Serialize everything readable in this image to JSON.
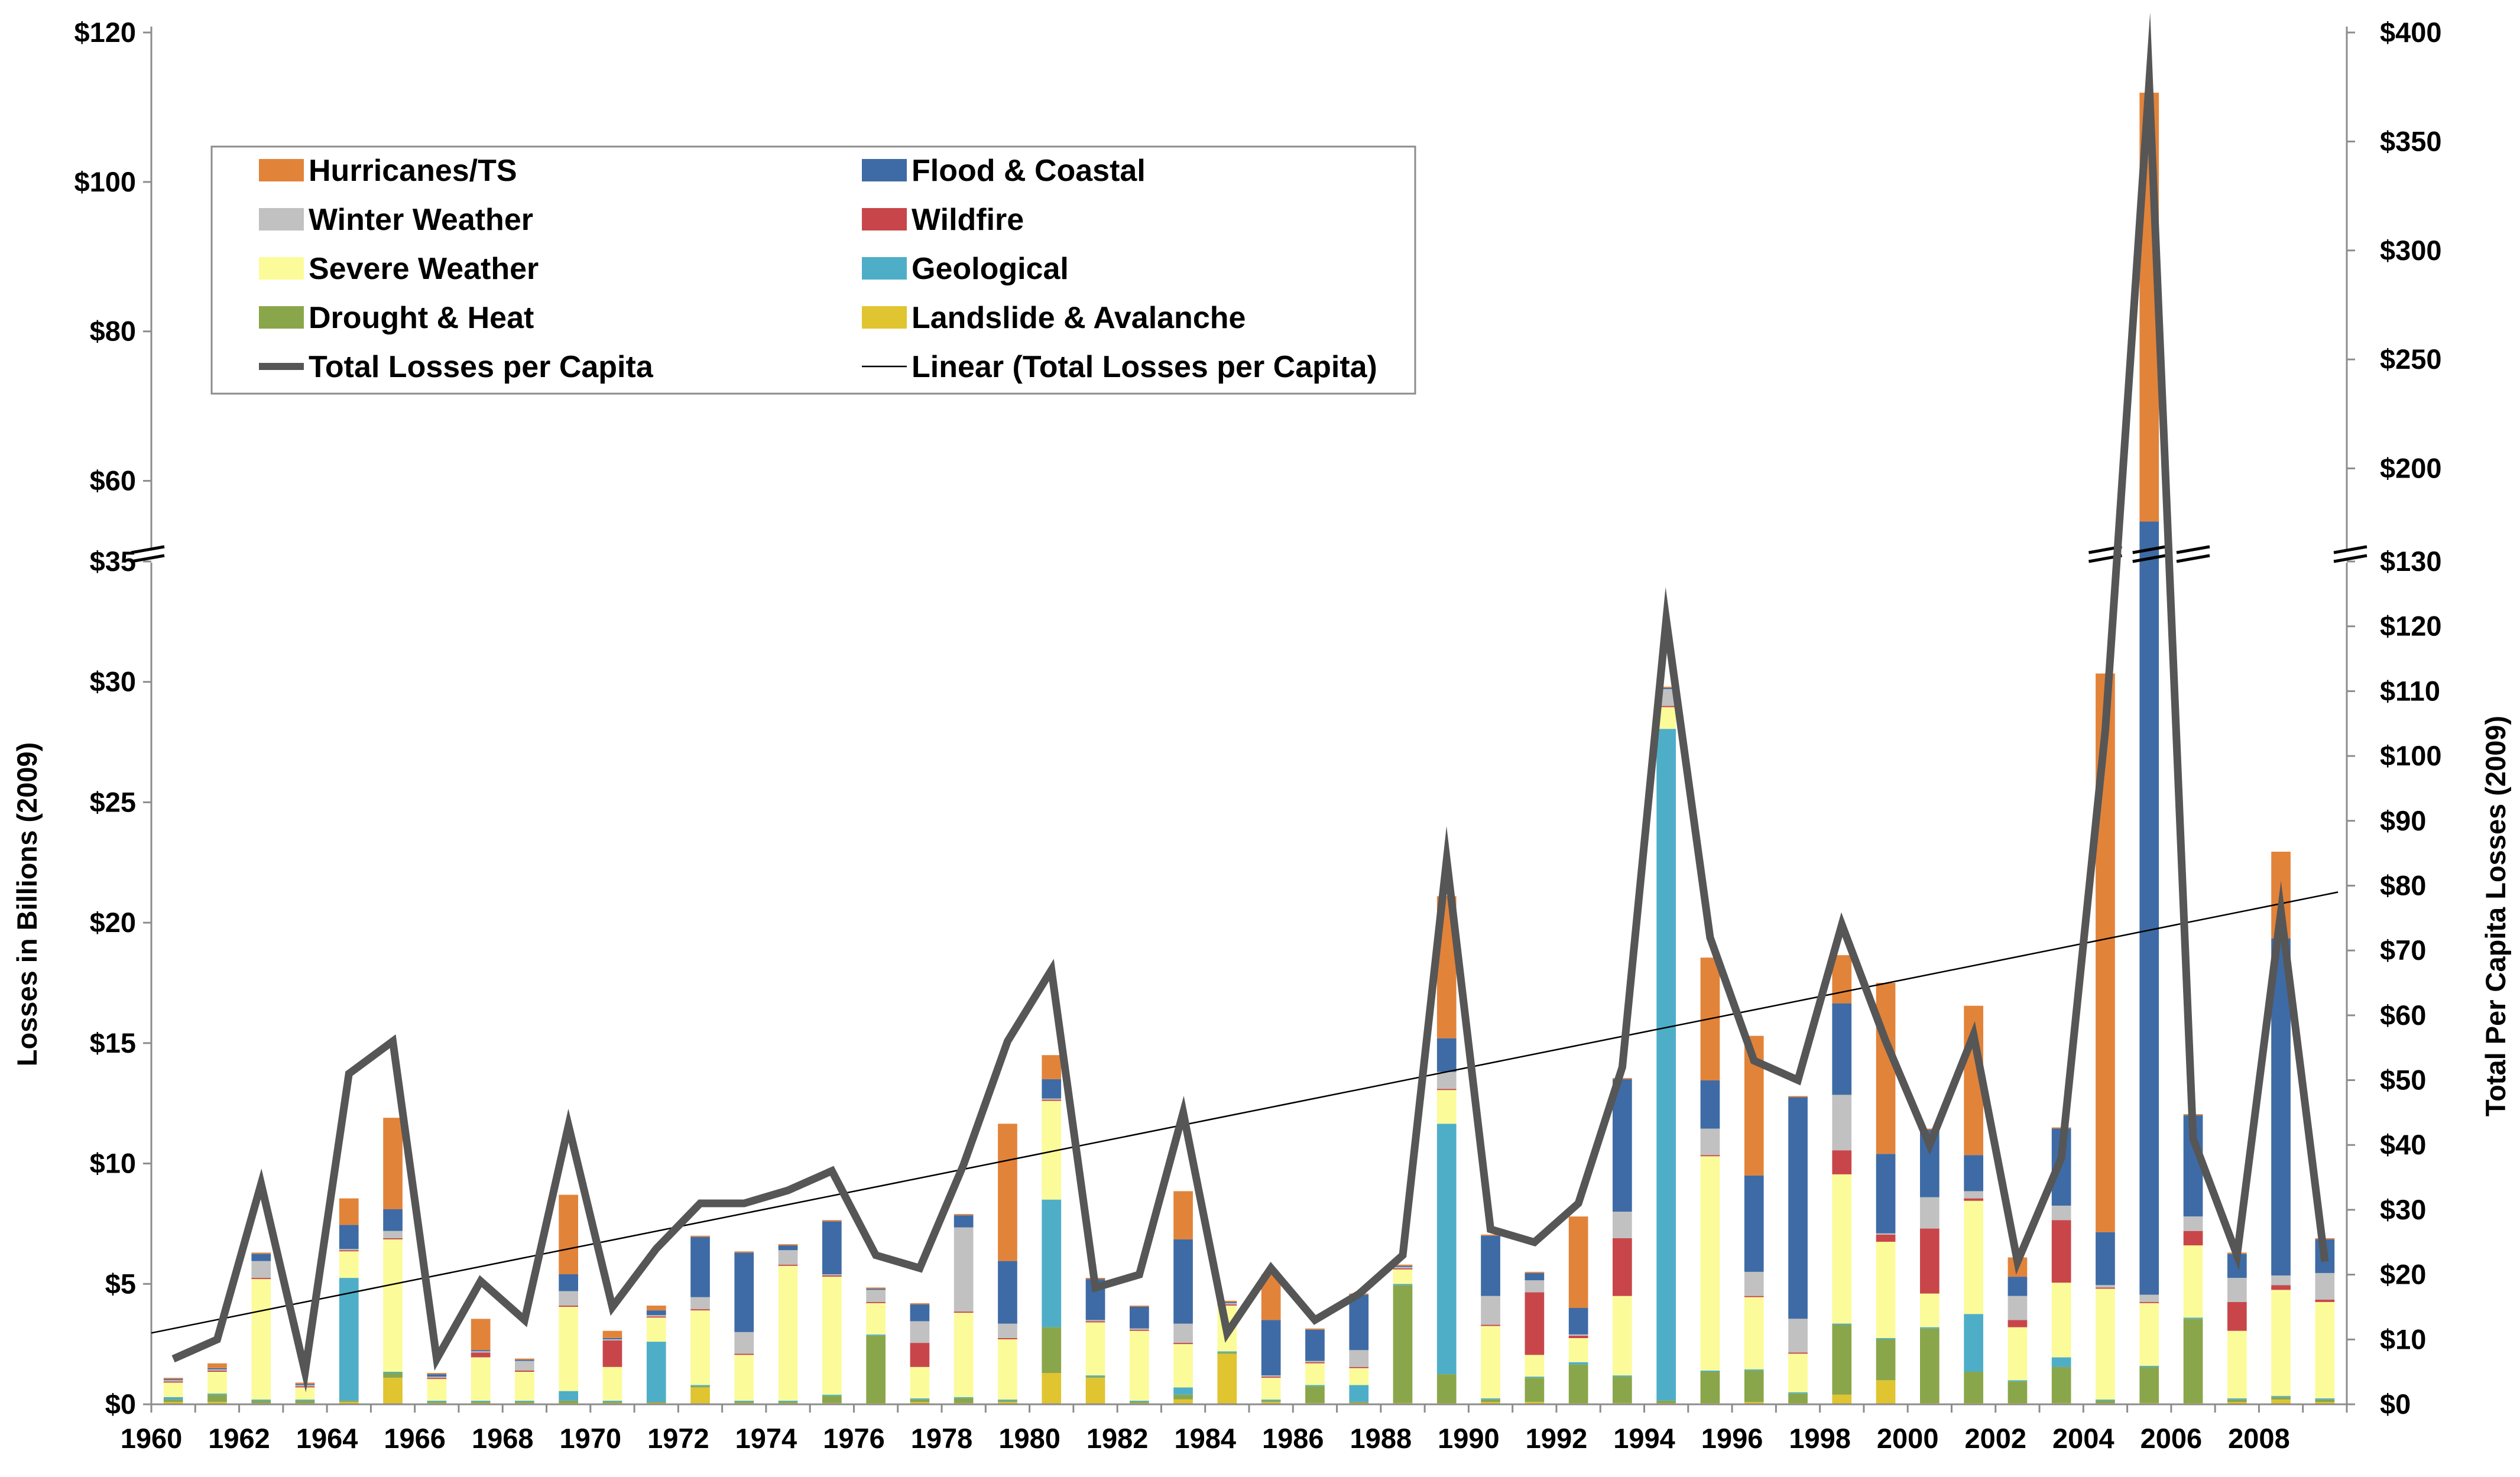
{
  "chart_data": {
    "type": "bar",
    "stacked": true,
    "title": "",
    "xlabel": "",
    "ylabel": "Losses in Billions (2009)",
    "y2label": "Total Per Capita Losses (2009)",
    "axis_break": {
      "left": [
        35,
        50
      ],
      "right": [
        130,
        160
      ]
    },
    "left_ticks_lower": [
      "$0",
      "$5",
      "$10",
      "$15",
      "$20",
      "$25",
      "$30",
      "$35"
    ],
    "left_ticks_upper": [
      "$60",
      "$80",
      "$100",
      "$120"
    ],
    "right_ticks_lower": [
      "$0",
      "$10",
      "$20",
      "$30",
      "$40",
      "$50",
      "$60",
      "$70",
      "$80",
      "$90",
      "$100",
      "$110",
      "$120",
      "$130"
    ],
    "right_ticks_upper": [
      "$200",
      "$250",
      "$300",
      "$350",
      "$400"
    ],
    "x_tick_labels": [
      "1960",
      "1962",
      "1964",
      "1966",
      "1968",
      "1970",
      "1972",
      "1974",
      "1976",
      "1978",
      "1980",
      "1982",
      "1984",
      "1986",
      "1988",
      "1990",
      "1992",
      "1994",
      "1996",
      "1998",
      "2000",
      "2002",
      "2004",
      "2006",
      "2008"
    ],
    "categories": [
      1960,
      1961,
      1962,
      1963,
      1964,
      1965,
      1966,
      1967,
      1968,
      1969,
      1970,
      1971,
      1972,
      1973,
      1974,
      1975,
      1976,
      1977,
      1978,
      1979,
      1980,
      1981,
      1982,
      1983,
      1984,
      1985,
      1986,
      1987,
      1988,
      1989,
      1990,
      1991,
      1992,
      1993,
      1994,
      1995,
      1996,
      1997,
      1998,
      1999,
      2000,
      2001,
      2002,
      2003,
      2004,
      2005,
      2006,
      2007,
      2008,
      2009
    ],
    "series": [
      {
        "name": "Landslide & Avalanche",
        "color": "#e0c430",
        "values": [
          0.1,
          0.1,
          0.05,
          0.05,
          0.1,
          1.1,
          0.05,
          0.05,
          0.05,
          0.05,
          0.05,
          0.05,
          0.7,
          0.05,
          0.05,
          0.05,
          0.05,
          0.1,
          0.05,
          0.1,
          1.3,
          1.1,
          0.05,
          0.2,
          2.1,
          0.1,
          0.05,
          0.05,
          0.05,
          0.05,
          0.1,
          0.1,
          0.05,
          0.05,
          0.05,
          0.05,
          0.1,
          0.05,
          0.4,
          1.0,
          0.05,
          0.05,
          0.05,
          0.05,
          0.05,
          0.05,
          0.05,
          0.1,
          0.2,
          0.1
        ]
      },
      {
        "name": "Drought & Heat",
        "color": "#8aa64a",
        "values": [
          0.1,
          0.3,
          0.1,
          0.1,
          0.05,
          0.2,
          0.05,
          0.05,
          0.05,
          0.1,
          0.05,
          0.05,
          0.05,
          0.05,
          0.05,
          0.3,
          2.8,
          0.1,
          0.2,
          0.05,
          1.9,
          0.05,
          0.05,
          0.2,
          0.05,
          0.05,
          0.7,
          0.05,
          4.9,
          1.2,
          0.1,
          1.0,
          1.6,
          1.1,
          0.1,
          1.3,
          1.3,
          0.4,
          2.9,
          1.7,
          3.1,
          1.3,
          0.9,
          1.5,
          0.1,
          1.5,
          3.5,
          0.1,
          0.1,
          0.1
        ]
      },
      {
        "name": "Geological",
        "color": "#4eaec8",
        "values": [
          0.1,
          0.05,
          0.05,
          0.05,
          5.1,
          0.05,
          0.05,
          0.05,
          0.05,
          0.4,
          0.05,
          2.5,
          0.05,
          0.05,
          0.05,
          0.05,
          0.05,
          0.05,
          0.05,
          0.05,
          5.3,
          0.05,
          0.05,
          0.3,
          0.05,
          0.05,
          0.05,
          0.7,
          0.05,
          10.4,
          0.05,
          0.05,
          0.1,
          0.05,
          27.9,
          0.05,
          0.05,
          0.05,
          0.05,
          0.05,
          0.05,
          2.4,
          0.05,
          0.4,
          0.05,
          0.05,
          0.05,
          0.05,
          0.05,
          0.05
        ]
      },
      {
        "name": "Severe Weather",
        "color": "#fbfb9a",
        "values": [
          0.6,
          0.9,
          5.0,
          0.5,
          1.1,
          5.5,
          0.9,
          1.8,
          1.2,
          3.5,
          1.4,
          1.0,
          3.1,
          1.9,
          5.6,
          4.9,
          1.3,
          1.3,
          3.5,
          2.5,
          4.1,
          2.2,
          2.9,
          1.8,
          1.9,
          0.9,
          0.9,
          0.7,
          0.6,
          1.4,
          3.0,
          0.9,
          1.0,
          3.3,
          0.9,
          8.9,
          3.0,
          1.6,
          6.2,
          4.0,
          1.4,
          4.7,
          2.2,
          3.1,
          4.6,
          2.6,
          3.0,
          2.8,
          4.4,
          4.0
        ]
      },
      {
        "name": "Wildfire",
        "color": "#c8464a",
        "values": [
          0.05,
          0.05,
          0.05,
          0.05,
          0.05,
          0.05,
          0.05,
          0.2,
          0.05,
          0.05,
          1.1,
          0.05,
          0.05,
          0.05,
          0.05,
          0.05,
          0.05,
          1.0,
          0.05,
          0.05,
          0.05,
          0.05,
          0.05,
          0.05,
          0.05,
          0.05,
          0.05,
          0.05,
          0.05,
          0.05,
          0.05,
          2.6,
          0.1,
          2.4,
          0.05,
          0.05,
          0.05,
          0.05,
          1.0,
          0.3,
          2.7,
          0.1,
          0.3,
          2.6,
          0.05,
          0.05,
          0.6,
          1.2,
          0.2,
          0.1
        ]
      },
      {
        "name": "Winter Weather",
        "color": "#c1c1c1",
        "values": [
          0.05,
          0.05,
          0.7,
          0.05,
          0.05,
          0.3,
          0.05,
          0.05,
          0.4,
          0.6,
          0.05,
          0.05,
          0.5,
          0.9,
          0.6,
          0.05,
          0.5,
          0.9,
          3.5,
          0.6,
          0.05,
          0.05,
          0.05,
          0.8,
          0.05,
          0.05,
          0.05,
          0.7,
          0.05,
          0.7,
          1.2,
          0.5,
          0.05,
          1.1,
          0.7,
          1.1,
          1.0,
          1.4,
          2.3,
          0.05,
          1.3,
          0.3,
          1.0,
          0.6,
          0.1,
          0.3,
          0.6,
          1.0,
          0.4,
          1.1
        ]
      },
      {
        "name": "Flood & Coastal",
        "color": "#3e6ba5",
        "values": [
          0.05,
          0.05,
          0.3,
          0.05,
          1.0,
          0.9,
          0.1,
          0.05,
          0.05,
          0.7,
          0.05,
          0.2,
          2.5,
          3.3,
          0.2,
          2.2,
          0.05,
          0.7,
          0.5,
          2.6,
          0.8,
          1.7,
          0.9,
          3.5,
          0.05,
          2.3,
          1.3,
          2.3,
          0.05,
          1.4,
          2.5,
          0.3,
          1.1,
          5.5,
          0.05,
          2.0,
          4.0,
          9.2,
          3.8,
          3.3,
          2.8,
          1.5,
          0.8,
          3.2,
          2.2,
          50.0,
          4.2,
          1.0,
          14.0,
          1.4
        ]
      },
      {
        "name": "Hurricanes/TS",
        "color": "#e2833a",
        "values": [
          0.05,
          0.2,
          0.05,
          0.05,
          1.1,
          3.8,
          0.05,
          1.3,
          0.05,
          3.3,
          0.3,
          0.2,
          0.05,
          0.05,
          0.05,
          0.05,
          0.05,
          0.05,
          0.05,
          5.7,
          1.0,
          0.05,
          0.05,
          2.0,
          0.05,
          1.9,
          0.05,
          0.05,
          0.05,
          5.9,
          0.05,
          0.05,
          3.8,
          0.05,
          0.05,
          5.1,
          5.8,
          0.05,
          2.0,
          7.1,
          0.05,
          6.2,
          0.8,
          0.05,
          23.2,
          57.4,
          0.05,
          0.05,
          3.6,
          0.05
        ]
      }
    ],
    "line_series": {
      "name": "Total Losses per Capita",
      "color": "#565656",
      "values": [
        7,
        10,
        34,
        5,
        51,
        56,
        7,
        19,
        13,
        43,
        15,
        24,
        31,
        31,
        33,
        36,
        23,
        21,
        37,
        56,
        67,
        18,
        20,
        45,
        11,
        21,
        13,
        17,
        23,
        84,
        27,
        25,
        31,
        52,
        121,
        72,
        53,
        50,
        74,
        56,
        40,
        57,
        22,
        38,
        104,
        377,
        41,
        23,
        76,
        22
      ]
    },
    "trend_series": {
      "name": "Linear (Total Losses per Capita)",
      "color": "#000000",
      "start": 11,
      "end": 79
    },
    "legend": {
      "position": "top-left",
      "items": [
        {
          "label": "Hurricanes/TS",
          "kind": "box",
          "color": "#e2833a"
        },
        {
          "label": "Flood & Coastal",
          "kind": "box",
          "color": "#3e6ba5"
        },
        {
          "label": "Winter Weather",
          "kind": "box",
          "color": "#c1c1c1"
        },
        {
          "label": "Wildfire",
          "kind": "box",
          "color": "#c8464a"
        },
        {
          "label": "Severe Weather",
          "kind": "box",
          "color": "#fbfb9a"
        },
        {
          "label": "Geological",
          "kind": "box",
          "color": "#4eaec8"
        },
        {
          "label": "Drought & Heat",
          "kind": "box",
          "color": "#8aa64a"
        },
        {
          "label": "Landslide & Avalanche",
          "kind": "box",
          "color": "#e0c430"
        },
        {
          "label": "Total Losses per Capita",
          "kind": "thick-line",
          "color": "#565656"
        },
        {
          "label": "Linear (Total Losses per Capita)",
          "kind": "thin-line",
          "color": "#000000"
        }
      ]
    }
  }
}
